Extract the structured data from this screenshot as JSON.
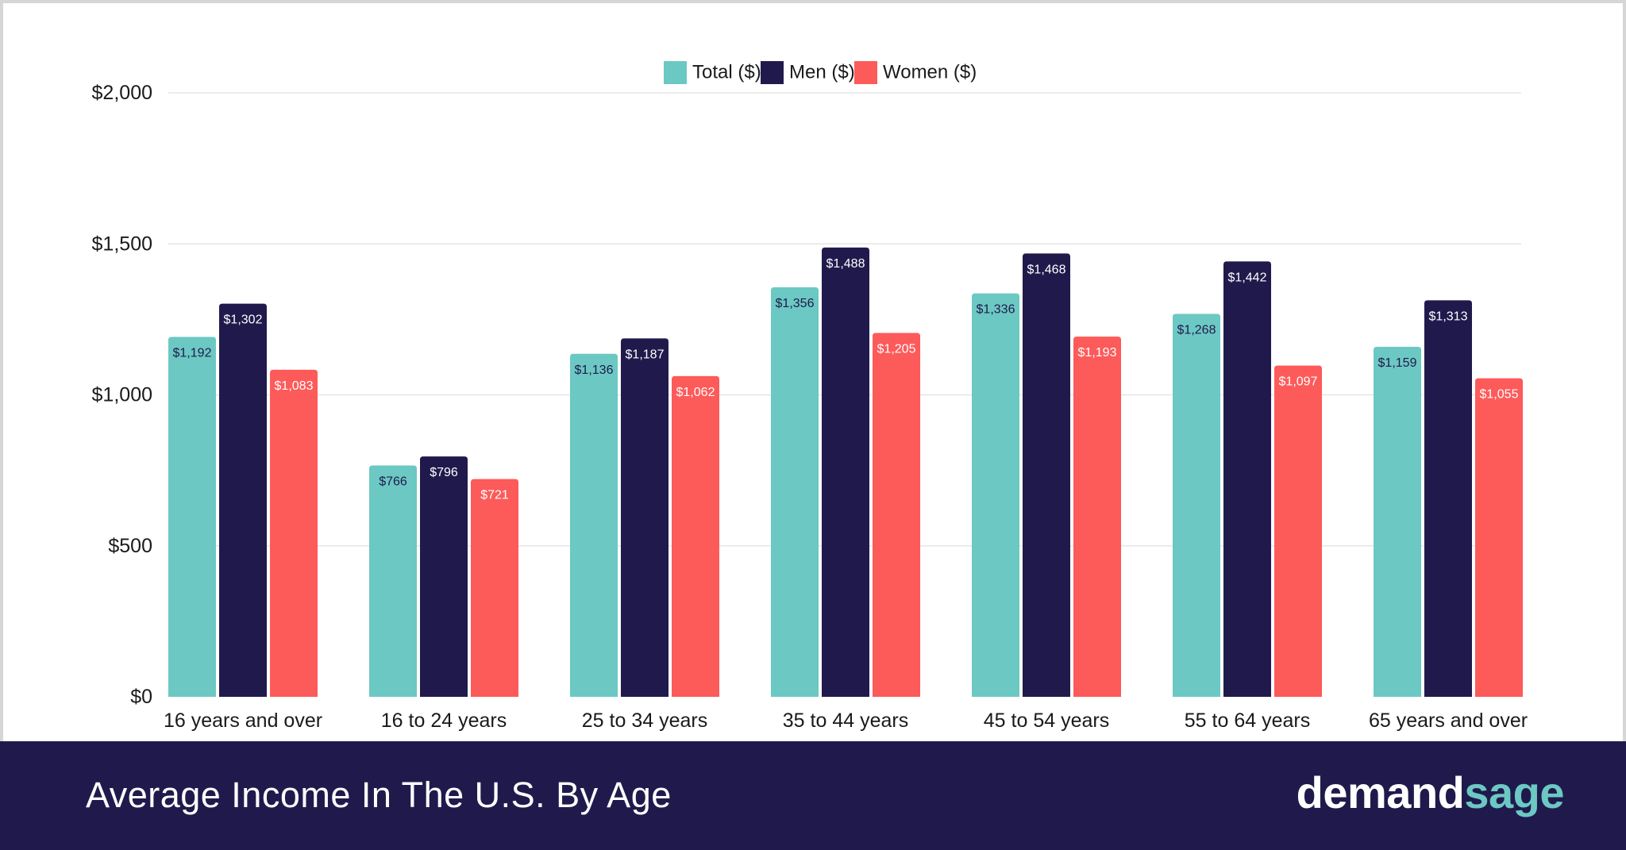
{
  "footer": {
    "title": "Average Income In The U.S. By Age",
    "brand_part1": "demand",
    "brand_part2": "sage"
  },
  "colors": {
    "total": "#6cc8c3",
    "men": "#201a4c",
    "women": "#fd5a5a",
    "footer_bg": "#201a4c",
    "grid": "#e6e6e6"
  },
  "chart_data": {
    "type": "bar",
    "title": "",
    "xlabel": "",
    "ylabel": "",
    "ylim": [
      0,
      2000
    ],
    "yticks": [
      0,
      500,
      1000,
      1500,
      2000
    ],
    "ytick_labels": [
      "$0",
      "$500",
      "$1,000",
      "$1,500",
      "$2,000"
    ],
    "grid": true,
    "legend_position": "top-center",
    "categories": [
      "16 years and over",
      "16 to 24 years",
      "25 to 34 years",
      "35 to 44 years",
      "45 to 54 years",
      "55 to 64 years",
      "65 years and over"
    ],
    "series": [
      {
        "name": "Total ($)",
        "color": "#6cc8c3",
        "label_color": "#201a4c",
        "values": [
          1192,
          766,
          1136,
          1356,
          1336,
          1268,
          1159
        ],
        "labels": [
          "$1,192",
          "$766",
          "$1,136",
          "$1,356",
          "$1,336",
          "$1,268",
          "$1,159"
        ]
      },
      {
        "name": "Men ($)",
        "color": "#201a4c",
        "label_color": "#ffffff",
        "values": [
          1302,
          796,
          1187,
          1488,
          1468,
          1442,
          1313
        ],
        "labels": [
          "$1,302",
          "$796",
          "$1,187",
          "$1,488",
          "$1,468",
          "$1,442",
          "$1,313"
        ]
      },
      {
        "name": "Women ($)",
        "color": "#fd5a5a",
        "label_color": "#ffffff",
        "values": [
          1083,
          721,
          1062,
          1205,
          1193,
          1097,
          1055
        ],
        "labels": [
          "$1,083",
          "$721",
          "$1,062",
          "$1,205",
          "$1,193",
          "$1,097",
          "$1,055"
        ]
      }
    ]
  }
}
